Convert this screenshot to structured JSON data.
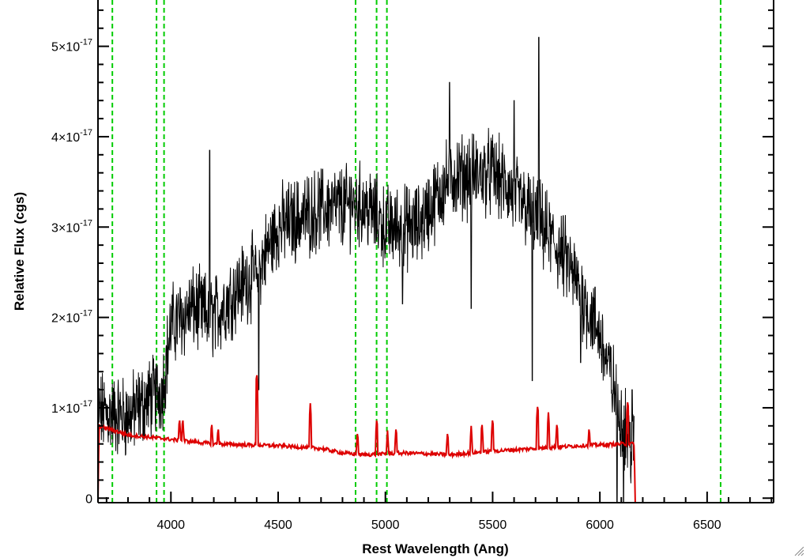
{
  "chart_data": {
    "type": "line",
    "title": "",
    "xlabel": "Rest Wavelength (Ang)",
    "ylabel": "Relative Flux (cgs)",
    "xlim": [
      3660,
      6810
    ],
    "ylim": [
      -5e-19,
      5.6e-17
    ],
    "x_ticks": [
      {
        "value": 4000,
        "label": "4000"
      },
      {
        "value": 4500,
        "label": "4500"
      },
      {
        "value": 5000,
        "label": "5000"
      },
      {
        "value": 5500,
        "label": "5500"
      },
      {
        "value": 6000,
        "label": "6000"
      },
      {
        "value": 6500,
        "label": "6500"
      }
    ],
    "y_ticks": [
      {
        "value": 0,
        "mantissa": "0",
        "exponent": ""
      },
      {
        "value": 1e-17,
        "mantissa": "1×10",
        "exponent": "-17"
      },
      {
        "value": 2e-17,
        "mantissa": "2×10",
        "exponent": "-17"
      },
      {
        "value": 3e-17,
        "mantissa": "3×10",
        "exponent": "-17"
      },
      {
        "value": 4e-17,
        "mantissa": "4×10",
        "exponent": "-17"
      },
      {
        "value": 5e-17,
        "mantissa": "5×10",
        "exponent": "-17"
      }
    ],
    "x_minor_step": 100,
    "y_minor_step": 2e-18,
    "grid": false,
    "legend": "none",
    "vlines": {
      "color": "#00cc00",
      "style": "dashed",
      "x": [
        3727,
        3933,
        3968,
        4861,
        4959,
        5007,
        6563
      ]
    },
    "series": [
      {
        "color": "#000000",
        "style": "noisy-spectrum",
        "x_range": [
          3660,
          6160
        ],
        "continuum": [
          [
            3660,
            9.5e-18
          ],
          [
            3800,
            9e-18
          ],
          [
            3900,
            1.1e-17
          ],
          [
            3960,
            1.2e-17
          ],
          [
            4000,
            1.9e-17
          ],
          [
            4100,
            2.1e-17
          ],
          [
            4200,
            2e-17
          ],
          [
            4300,
            2.3e-17
          ],
          [
            4400,
            2.5e-17
          ],
          [
            4500,
            3e-17
          ],
          [
            4700,
            3.2e-17
          ],
          [
            4900,
            3.25e-17
          ],
          [
            5000,
            3e-17
          ],
          [
            5150,
            3e-17
          ],
          [
            5300,
            3.55e-17
          ],
          [
            5500,
            3.6e-17
          ],
          [
            5700,
            3.1e-17
          ],
          [
            5850,
            2.6e-17
          ],
          [
            6000,
            1.8e-17
          ],
          [
            6100,
            9e-18
          ],
          [
            6160,
            5e-18
          ]
        ],
        "spikes": [
          [
            4180,
            3.85e-17
          ],
          [
            4400,
            2.55e-17
          ],
          [
            4410,
            1.2e-17
          ],
          [
            4840,
            3.55e-17
          ],
          [
            5080,
            2.15e-17
          ],
          [
            5300,
            4.6e-17
          ],
          [
            5400,
            2.1e-17
          ],
          [
            5600,
            4.4e-17
          ],
          [
            5685,
            1.3e-17
          ],
          [
            5715,
            5.1e-17
          ],
          [
            5910,
            1.5e-17
          ],
          [
            6150,
            1.2e-17
          ],
          [
            6080,
            -5e-19
          ],
          [
            6110,
            -5e-19
          ]
        ]
      },
      {
        "color": "#dd0000",
        "style": "error-spectrum",
        "x_range": [
          3660,
          6810
        ],
        "continuum": [
          [
            3660,
            -5e-19
          ],
          [
            3665,
            8e-18
          ],
          [
            3800,
            7e-18
          ],
          [
            4000,
            6.5e-18
          ],
          [
            4200,
            6e-18
          ],
          [
            4500,
            5.8e-18
          ],
          [
            4700,
            5.5e-18
          ],
          [
            4800,
            5e-18
          ],
          [
            4900,
            4.8e-18
          ],
          [
            5100,
            5e-18
          ],
          [
            5300,
            4.8e-18
          ],
          [
            5500,
            5.2e-18
          ],
          [
            5700,
            5.5e-18
          ],
          [
            5900,
            5.8e-18
          ],
          [
            6100,
            6e-18
          ],
          [
            6160,
            6e-18
          ],
          [
            6165,
            -5e-19
          ],
          [
            6810,
            -5e-19
          ]
        ],
        "spikes": [
          [
            4040,
            9e-18
          ],
          [
            4055,
            9e-18
          ],
          [
            4190,
            8.5e-18
          ],
          [
            4220,
            8e-18
          ],
          [
            4400,
            1.4e-17
          ],
          [
            4650,
            1.05e-17
          ],
          [
            4870,
            7.5e-18
          ],
          [
            4960,
            9e-18
          ],
          [
            5010,
            7.5e-18
          ],
          [
            5050,
            8e-18
          ],
          [
            5290,
            7.5e-18
          ],
          [
            5400,
            8e-18
          ],
          [
            5450,
            8.5e-18
          ],
          [
            5500,
            9e-18
          ],
          [
            5710,
            1.05e-17
          ],
          [
            5760,
            9.5e-18
          ],
          [
            5800,
            8.5e-18
          ],
          [
            5950,
            8e-18
          ],
          [
            6130,
            1.1e-17
          ]
        ]
      }
    ]
  }
}
